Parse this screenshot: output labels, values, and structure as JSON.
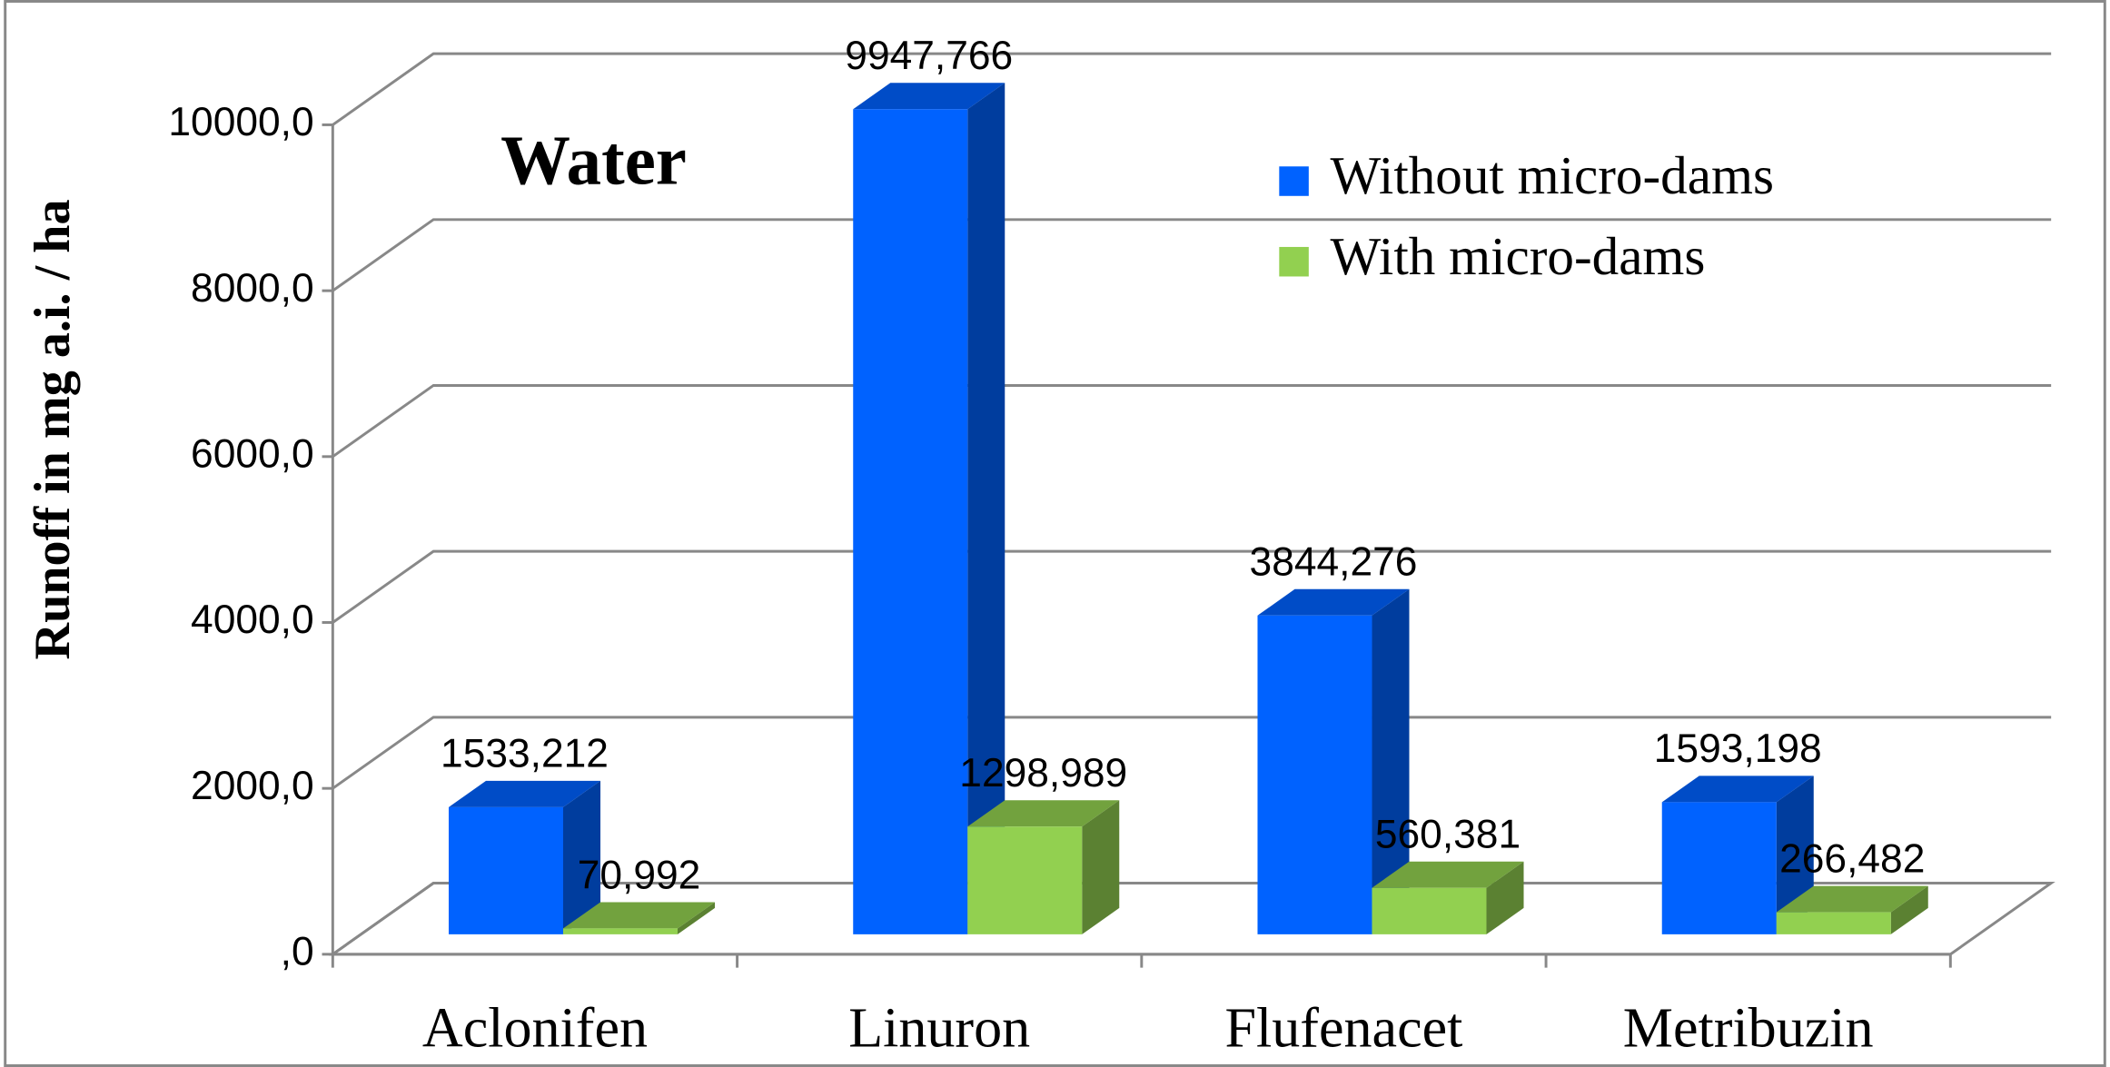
{
  "chart_data": {
    "type": "bar3d",
    "annotation": "Water",
    "y_label": "Runoff in mg a.i. / ha",
    "categories": [
      "Aclonifen",
      "Linuron",
      "Flufenacet",
      "Metribuzin"
    ],
    "series": [
      {
        "name": "Without micro-dams",
        "color": "#0062ff",
        "values": [
          1533.212,
          9947.766,
          3844.276,
          1593.198
        ],
        "value_labels": [
          "1533,212",
          "9947,766",
          "3844,276",
          "1593,198"
        ]
      },
      {
        "name": "With micro-dams",
        "color": "#92d050",
        "values": [
          70.992,
          1298.989,
          560.381,
          266.482
        ],
        "value_labels": [
          "70,992",
          "1298,989",
          "560,381",
          "266,482"
        ]
      }
    ],
    "ylim": [
      0,
      10000
    ],
    "yticks": [
      {
        "value": 0,
        "label": ",0"
      },
      {
        "value": 2000,
        "label": "2000,0"
      },
      {
        "value": 4000,
        "label": "4000,0"
      },
      {
        "value": 6000,
        "label": "6000,0"
      },
      {
        "value": 8000,
        "label": "8000,0"
      },
      {
        "value": 10000,
        "label": "10000,0"
      }
    ],
    "grid": true,
    "legend": "upper right"
  }
}
